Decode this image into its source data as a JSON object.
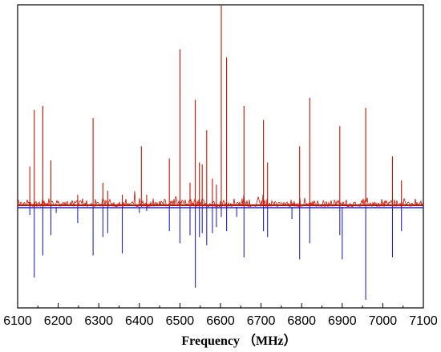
{
  "chart_data": {
    "type": "line",
    "title": "",
    "xlabel": "Frequency （MHz）",
    "ylabel": "",
    "xlim": [
      6100,
      7100
    ],
    "x_ticks": [
      6100,
      6200,
      6300,
      6400,
      6500,
      6600,
      6700,
      6800,
      6900,
      7000,
      7100
    ],
    "ylim": [
      -0.5,
      1.0
    ],
    "baseline": 0,
    "grid": false,
    "legend": "none",
    "series": [
      {
        "style": "red",
        "color": "#cc1100",
        "noise_level": 0.04,
        "peaks": [
          [
            6130,
            0.2
          ],
          [
            6141,
            0.48
          ],
          [
            6162,
            0.5
          ],
          [
            6182,
            0.23
          ],
          [
            6248,
            0.06
          ],
          [
            6286,
            0.44
          ],
          [
            6310,
            0.12
          ],
          [
            6322,
            0.08
          ],
          [
            6358,
            0.06
          ],
          [
            6405,
            0.3
          ],
          [
            6418,
            0.06
          ],
          [
            6474,
            0.24
          ],
          [
            6500,
            0.78
          ],
          [
            6525,
            0.12
          ],
          [
            6538,
            0.53
          ],
          [
            6548,
            0.22
          ],
          [
            6555,
            0.21
          ],
          [
            6566,
            0.38
          ],
          [
            6580,
            0.14
          ],
          [
            6590,
            0.11
          ],
          [
            6602,
            1.0
          ],
          [
            6615,
            0.74
          ],
          [
            6658,
            0.5
          ],
          [
            6706,
            0.43
          ],
          [
            6716,
            0.22
          ],
          [
            6795,
            0.3
          ],
          [
            6820,
            0.54
          ],
          [
            6894,
            0.4
          ],
          [
            6958,
            0.49
          ],
          [
            7024,
            0.25
          ],
          [
            7046,
            0.13
          ]
        ]
      },
      {
        "style": "blue",
        "color": "#2222cc",
        "peaks": [
          [
            6130,
            -0.04
          ],
          [
            6141,
            -0.35
          ],
          [
            6162,
            -0.24
          ],
          [
            6182,
            -0.14
          ],
          [
            6195,
            -0.03
          ],
          [
            6248,
            -0.08
          ],
          [
            6286,
            -0.24
          ],
          [
            6310,
            -0.15
          ],
          [
            6322,
            -0.13
          ],
          [
            6358,
            -0.23
          ],
          [
            6400,
            -0.03
          ],
          [
            6418,
            -0.02
          ],
          [
            6474,
            -0.12
          ],
          [
            6500,
            -0.18
          ],
          [
            6525,
            -0.14
          ],
          [
            6538,
            -0.4
          ],
          [
            6548,
            -0.15
          ],
          [
            6555,
            -0.13
          ],
          [
            6566,
            -0.19
          ],
          [
            6580,
            -0.13
          ],
          [
            6590,
            -0.1
          ],
          [
            6602,
            -0.05
          ],
          [
            6615,
            -0.12
          ],
          [
            6640,
            -0.05
          ],
          [
            6658,
            -0.25
          ],
          [
            6706,
            -0.12
          ],
          [
            6716,
            -0.15
          ],
          [
            6776,
            -0.06
          ],
          [
            6795,
            -0.26
          ],
          [
            6820,
            -0.18
          ],
          [
            6894,
            -0.14
          ],
          [
            6900,
            -0.26
          ],
          [
            6958,
            -0.46
          ],
          [
            7024,
            -0.25
          ],
          [
            7046,
            -0.12
          ]
        ]
      }
    ]
  }
}
